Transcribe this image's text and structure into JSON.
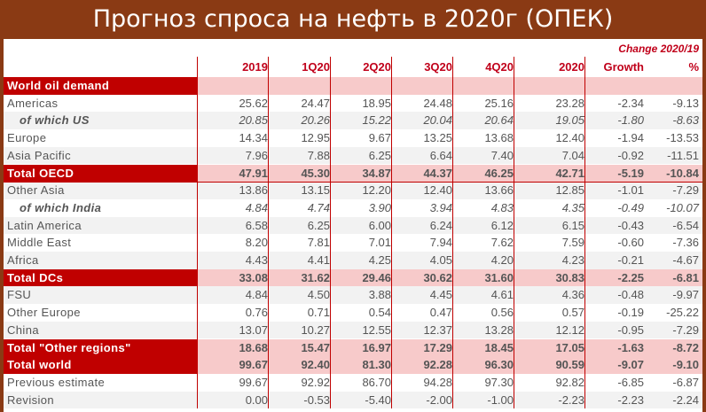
{
  "title": "Прогноз спроса на нефть в 2020г (ОПЕК)",
  "header": {
    "change_label": "Change 2020/19",
    "columns": [
      "2019",
      "1Q20",
      "2Q20",
      "3Q20",
      "4Q20",
      "2020",
      "Growth",
      "%"
    ]
  },
  "rows": [
    {
      "kind": "sec",
      "label": "World oil demand",
      "values": [
        "",
        "",
        "",
        "",
        "",
        "",
        "",
        ""
      ]
    },
    {
      "kind": "row",
      "label": "Americas",
      "values": [
        "25.62",
        "24.47",
        "18.95",
        "24.48",
        "25.16",
        "23.28",
        "-2.34",
        "-9.13"
      ]
    },
    {
      "kind": "ital",
      "label": "of which US",
      "values": [
        "20.85",
        "20.26",
        "15.22",
        "20.04",
        "20.64",
        "19.05",
        "-1.80",
        "-8.63"
      ]
    },
    {
      "kind": "row",
      "label": "Europe",
      "values": [
        "14.34",
        "12.95",
        "9.67",
        "13.25",
        "13.68",
        "12.40",
        "-1.94",
        "-13.53"
      ]
    },
    {
      "kind": "row",
      "label": "Asia Pacific",
      "values": [
        "7.96",
        "7.88",
        "6.25",
        "6.64",
        "7.40",
        "7.04",
        "-0.92",
        "-11.51"
      ]
    },
    {
      "kind": "tot",
      "label": "Total OECD",
      "values": [
        "47.91",
        "45.30",
        "34.87",
        "44.37",
        "46.25",
        "42.71",
        "-5.19",
        "-10.84"
      ]
    },
    {
      "kind": "row",
      "label": "Other Asia",
      "values": [
        "13.86",
        "13.15",
        "12.20",
        "12.40",
        "13.66",
        "12.85",
        "-1.01",
        "-7.29"
      ]
    },
    {
      "kind": "ital",
      "label": "of which India",
      "values": [
        "4.84",
        "4.74",
        "3.90",
        "3.94",
        "4.83",
        "4.35",
        "-0.49",
        "-10.07"
      ]
    },
    {
      "kind": "row",
      "label": "Latin America",
      "values": [
        "6.58",
        "6.25",
        "6.00",
        "6.24",
        "6.12",
        "6.15",
        "-0.43",
        "-6.54"
      ]
    },
    {
      "kind": "row",
      "label": "Middle East",
      "values": [
        "8.20",
        "7.81",
        "7.01",
        "7.94",
        "7.62",
        "7.59",
        "-0.60",
        "-7.36"
      ]
    },
    {
      "kind": "row",
      "label": "Africa",
      "values": [
        "4.43",
        "4.41",
        "4.25",
        "4.05",
        "4.20",
        "4.23",
        "-0.21",
        "-4.67"
      ]
    },
    {
      "kind": "tot",
      "label": "Total DCs",
      "values": [
        "33.08",
        "31.62",
        "29.46",
        "30.62",
        "31.60",
        "30.83",
        "-2.25",
        "-6.81"
      ]
    },
    {
      "kind": "row",
      "label": "FSU",
      "values": [
        "4.84",
        "4.50",
        "3.88",
        "4.45",
        "4.61",
        "4.36",
        "-0.48",
        "-9.97"
      ]
    },
    {
      "kind": "row",
      "label": "Other Europe",
      "values": [
        "0.76",
        "0.71",
        "0.54",
        "0.47",
        "0.56",
        "0.57",
        "-0.19",
        "-25.22"
      ]
    },
    {
      "kind": "row",
      "label": "China",
      "values": [
        "13.07",
        "10.27",
        "12.55",
        "12.37",
        "13.28",
        "12.12",
        "-0.95",
        "-7.29"
      ]
    },
    {
      "kind": "tot",
      "label": "Total \"Other regions\"",
      "values": [
        "18.68",
        "15.47",
        "16.97",
        "17.29",
        "18.45",
        "17.05",
        "-1.63",
        "-8.72"
      ]
    },
    {
      "kind": "tot",
      "label": "Total world",
      "values": [
        "99.67",
        "92.40",
        "81.30",
        "92.28",
        "96.30",
        "90.59",
        "-9.07",
        "-9.10"
      ]
    },
    {
      "kind": "row",
      "label": "Previous estimate",
      "values": [
        "99.67",
        "92.92",
        "86.70",
        "94.28",
        "97.30",
        "92.82",
        "-6.85",
        "-6.87"
      ]
    },
    {
      "kind": "row",
      "label": "Revision",
      "values": [
        "0.00",
        "-0.53",
        "-5.40",
        "-2.00",
        "-1.00",
        "-2.23",
        "-2.23",
        "-2.24"
      ]
    }
  ]
}
